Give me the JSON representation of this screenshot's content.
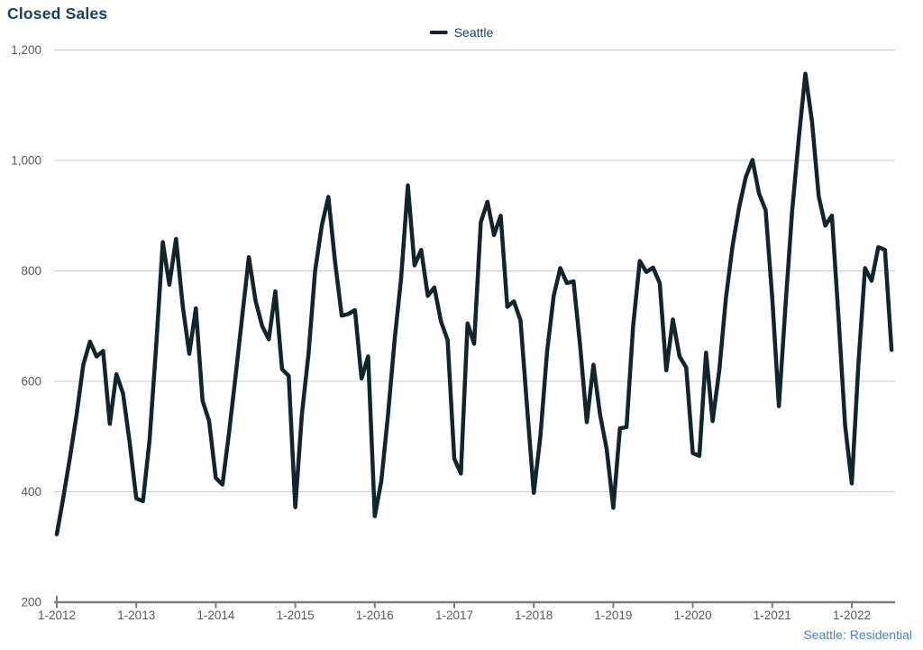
{
  "title": "Closed Sales",
  "legend": {
    "items": [
      {
        "label": "Seattle",
        "color": "#12242c"
      }
    ]
  },
  "footer": "Seattle: Residential",
  "colors": {
    "background": "#ffffff",
    "title_text": "#1c3e63",
    "legend_text": "#1d4164",
    "footer_text": "#4d82b8",
    "axis_label": "#595959",
    "gridline": "#cbcbcb",
    "axis_line": "#7b7b7b",
    "series_line": "#12242c"
  },
  "chart_data": {
    "type": "line",
    "title": "Closed Sales",
    "frequency": "monthly",
    "x_start": "2012-01",
    "x_end": "2022-07",
    "x_tick_labels": [
      "1-2012",
      "1-2013",
      "1-2014",
      "1-2015",
      "1-2016",
      "1-2017",
      "1-2018",
      "1-2019",
      "1-2020",
      "1-2021",
      "1-2022"
    ],
    "y_tick_values": [
      200,
      400,
      600,
      800,
      1000,
      1200
    ],
    "y_tick_labels": [
      "200",
      "400",
      "600",
      "800",
      "1,000",
      "1,200"
    ],
    "ylim": [
      200,
      1200
    ],
    "grid": "horizontal",
    "legend_position": "top-center",
    "series": [
      {
        "name": "Seattle",
        "color": "#12242c",
        "values": [
          323,
          390,
          463,
          540,
          630,
          672,
          645,
          655,
          523,
          613,
          578,
          490,
          388,
          383,
          493,
          665,
          852,
          775,
          858,
          737,
          650,
          732,
          565,
          528,
          425,
          413,
          507,
          610,
          719,
          825,
          746,
          700,
          676,
          763,
          622,
          610,
          372,
          540,
          650,
          800,
          882,
          934,
          817,
          719,
          722,
          729,
          605,
          645,
          356,
          420,
          540,
          675,
          790,
          955,
          810,
          838,
          755,
          770,
          708,
          675,
          460,
          433,
          705,
          668,
          888,
          925,
          865,
          900,
          735,
          745,
          710,
          550,
          398,
          500,
          653,
          755,
          805,
          778,
          781,
          665,
          526,
          630,
          540,
          478,
          371,
          515,
          517,
          700,
          818,
          798,
          806,
          778,
          620,
          712,
          645,
          625,
          470,
          465,
          652,
          528,
          620,
          750,
          845,
          915,
          970,
          1001,
          940,
          910,
          750,
          555,
          738,
          908,
          1040,
          1157,
          1070,
          935,
          882,
          900,
          715,
          520,
          415,
          630,
          805,
          782,
          843,
          838,
          657
        ]
      }
    ]
  }
}
